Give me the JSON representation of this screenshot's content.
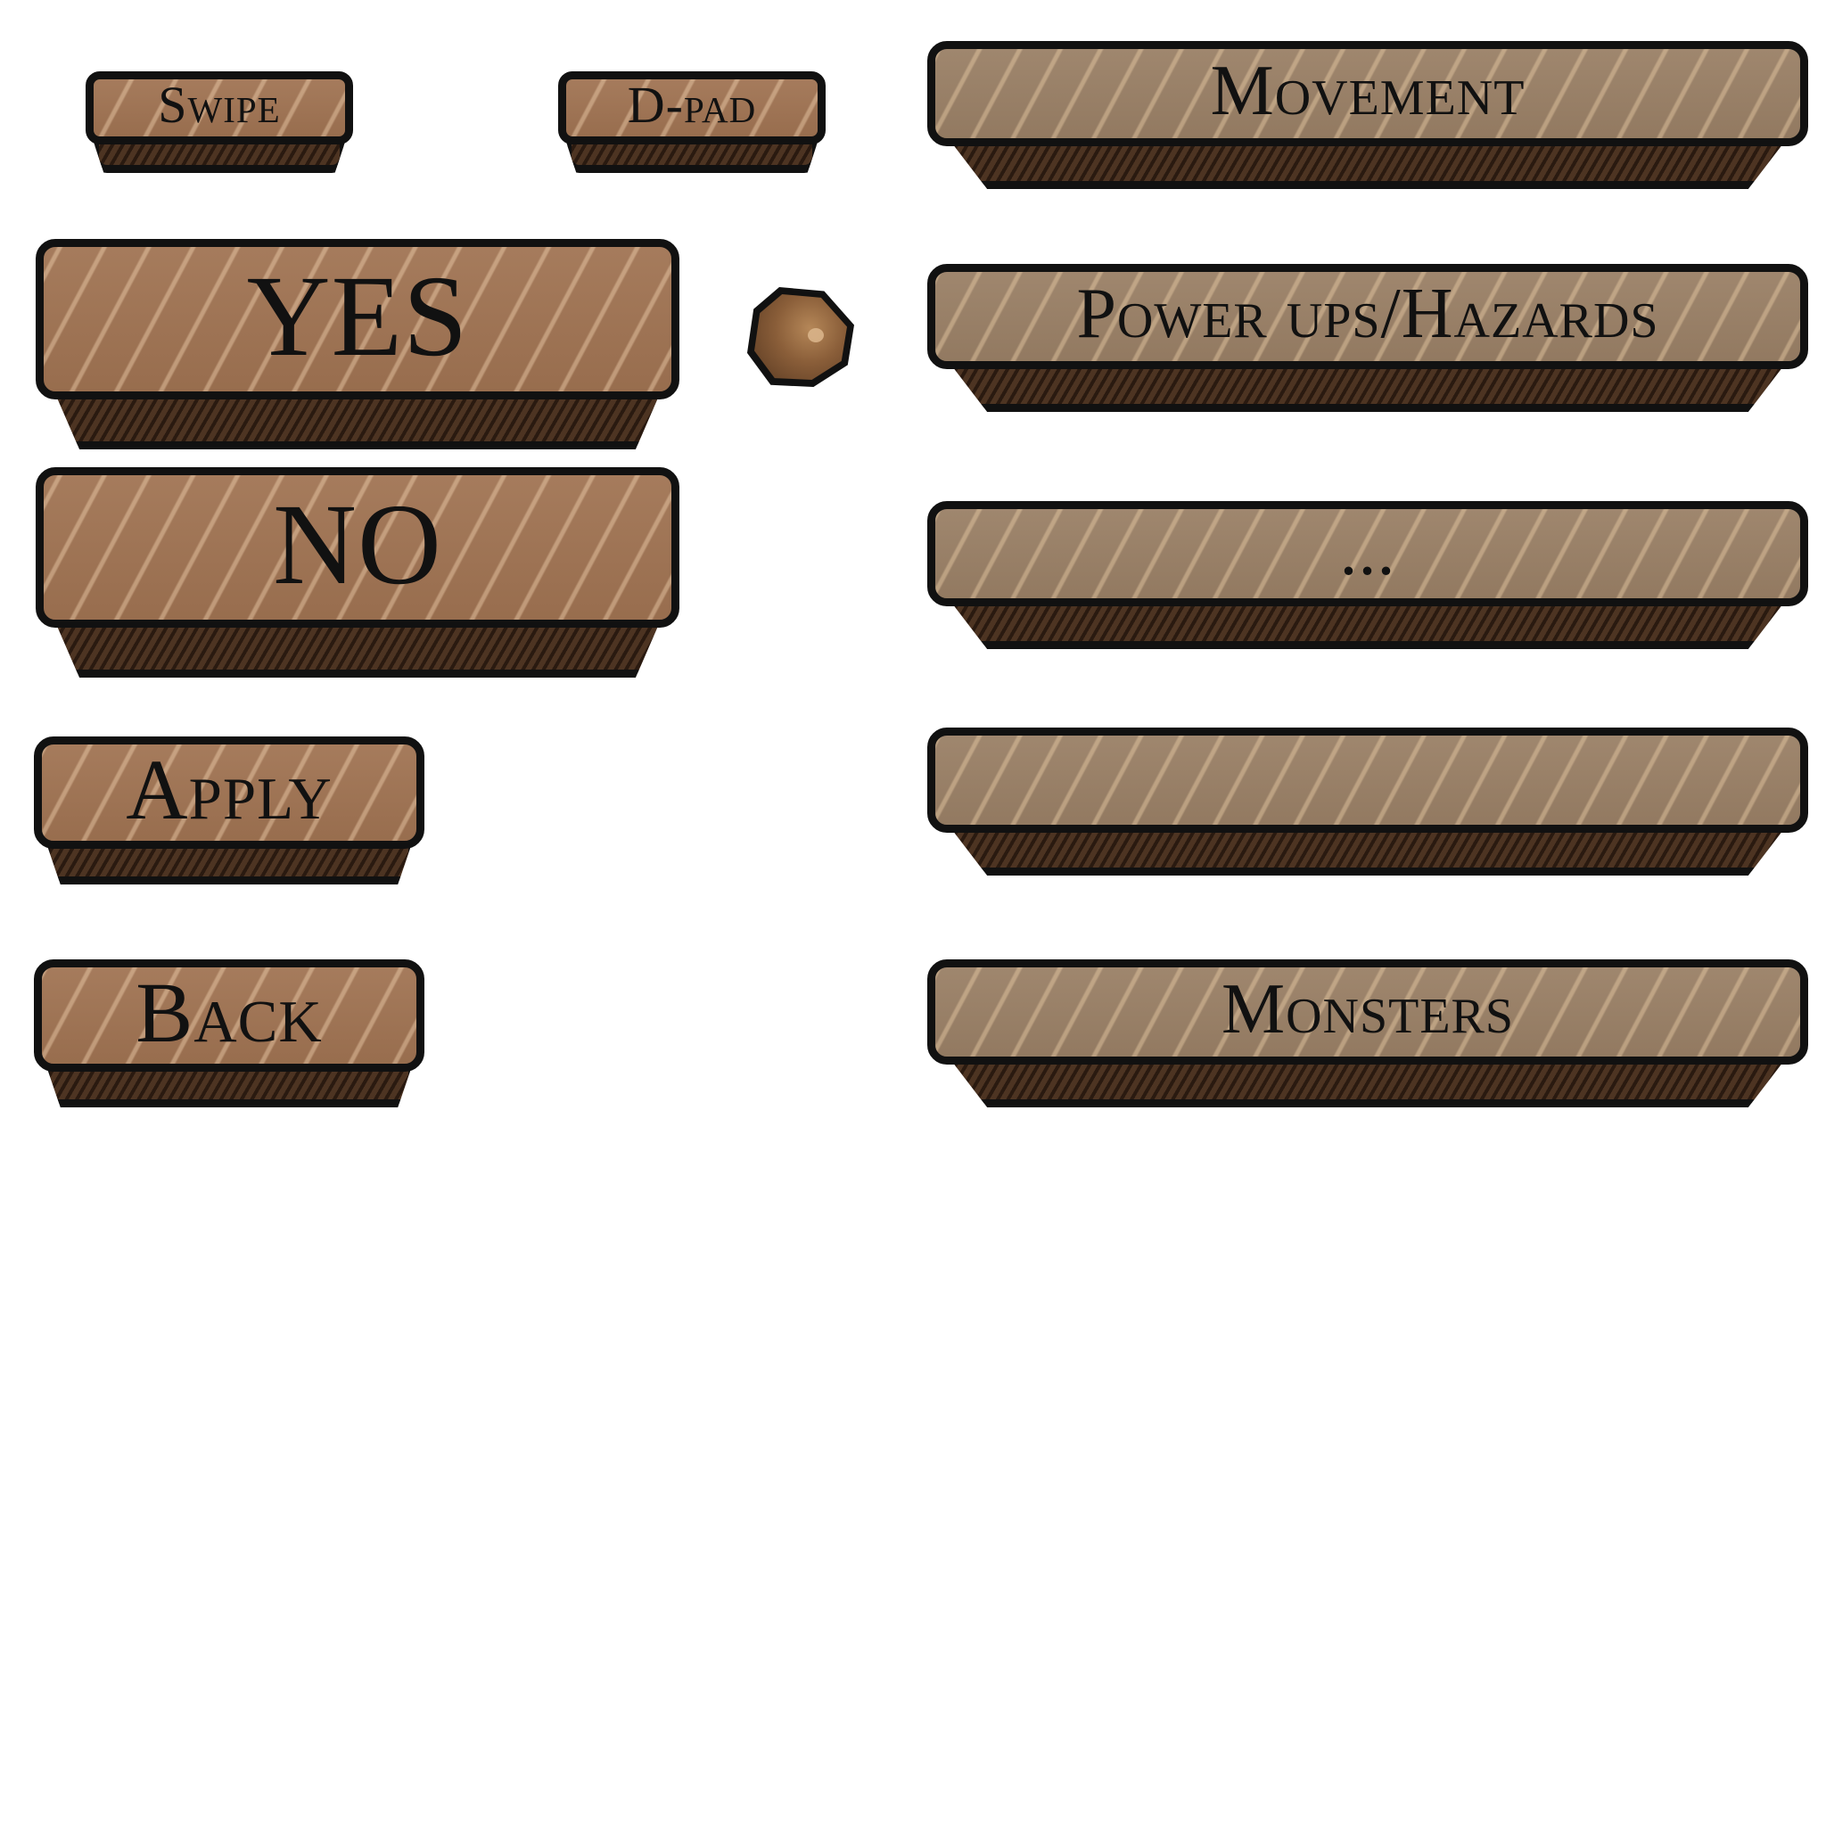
{
  "controls": {
    "swipe_label": "Swipe",
    "dpad_label": "D-pad"
  },
  "dialog": {
    "yes_label": "YES",
    "no_label": "NO"
  },
  "settings": {
    "apply_label": "Apply",
    "back_label": "Back"
  },
  "menu": {
    "items": [
      {
        "label": "Movement"
      },
      {
        "label": "Power ups/Hazards"
      },
      {
        "label": "..."
      },
      {
        "label": ""
      },
      {
        "label": "Monsters"
      }
    ]
  },
  "colors": {
    "wood": "#a07352",
    "wood_grey": "#9a8066",
    "outline": "#111111",
    "base": "#3e2a1c"
  },
  "icons": {
    "slider_knob": "slider-knob-icon"
  }
}
